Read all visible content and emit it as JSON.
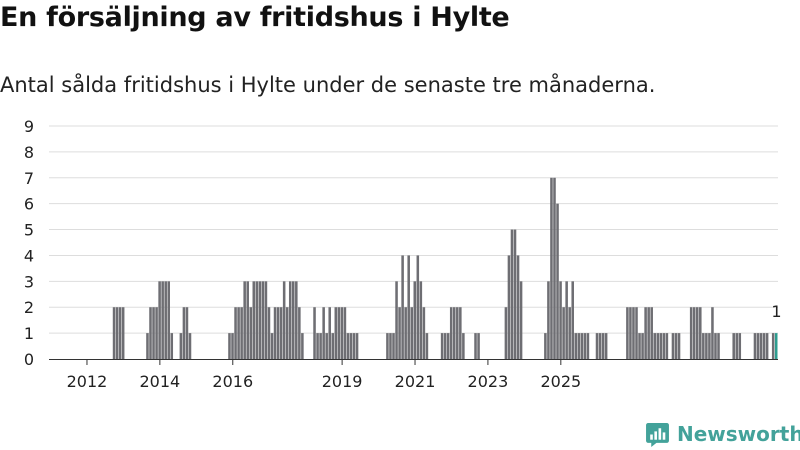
{
  "chart_data": {
    "type": "bar",
    "title": "En försäljning av fritidshus i Hylte",
    "subtitle": "Antal sålda fritidshus i Hylte under de senaste tre månaderna.",
    "x_start": "2011-01",
    "ylim": [
      0,
      9
    ],
    "yticks": [
      0,
      1,
      2,
      3,
      4,
      5,
      6,
      7,
      8,
      9
    ],
    "xtick_labels": [
      "2012",
      "2014",
      "2016",
      "2019",
      "2021",
      "2023",
      "2025"
    ],
    "xtick_months": [
      "2012-01",
      "2014-01",
      "2016-01",
      "2019-01",
      "2021-01",
      "2023-01",
      "2025-01"
    ],
    "grid": true,
    "bar_color": "#6e6e73",
    "highlight_color": "#2d9c8f",
    "highlight_label": "1",
    "values": [
      0,
      0,
      0,
      0,
      0,
      0,
      0,
      0,
      0,
      0,
      0,
      0,
      0,
      0,
      0,
      0,
      0,
      0,
      0,
      0,
      0,
      2,
      2,
      2,
      2,
      0,
      0,
      0,
      0,
      0,
      0,
      0,
      1,
      2,
      2,
      2,
      3,
      3,
      3,
      3,
      1,
      0,
      0,
      1,
      2,
      2,
      1,
      0,
      0,
      0,
      0,
      0,
      0,
      0,
      0,
      0,
      0,
      0,
      0,
      1,
      1,
      2,
      2,
      2,
      3,
      3,
      2,
      3,
      3,
      3,
      3,
      3,
      2,
      1,
      2,
      2,
      2,
      3,
      2,
      3,
      3,
      3,
      2,
      1,
      0,
      0,
      0,
      2,
      1,
      1,
      2,
      1,
      2,
      1,
      2,
      2,
      2,
      2,
      1,
      1,
      1,
      1,
      0,
      0,
      0,
      0,
      0,
      0,
      0,
      0,
      0,
      1,
      1,
      1,
      3,
      2,
      4,
      2,
      4,
      2,
      3,
      4,
      3,
      2,
      1,
      0,
      0,
      0,
      0,
      1,
      1,
      1,
      2,
      2,
      2,
      2,
      1,
      0,
      0,
      0,
      1,
      1,
      0,
      0,
      0,
      0,
      0,
      0,
      0,
      0,
      2,
      4,
      5,
      5,
      4,
      3,
      0,
      0,
      0,
      0,
      0,
      0,
      0,
      1,
      3,
      7,
      7,
      6,
      3,
      2,
      3,
      2,
      3,
      1,
      1,
      1,
      1,
      1,
      0,
      0,
      1,
      1,
      1,
      1,
      0,
      0,
      0,
      0,
      0,
      0,
      2,
      2,
      2,
      2,
      1,
      1,
      2,
      2,
      2,
      1,
      1,
      1,
      1,
      1,
      0,
      1,
      1,
      1,
      0,
      0,
      0,
      2,
      2,
      2,
      2,
      1,
      1,
      1,
      2,
      1,
      1,
      0,
      0,
      0,
      0,
      1,
      1,
      1,
      0,
      0,
      0,
      0,
      1,
      1,
      1,
      1,
      1,
      0,
      1,
      1
    ]
  },
  "brand": {
    "name": "Newsworthy",
    "icon": "newsworthy-logo-icon",
    "color": "#43a29a"
  }
}
